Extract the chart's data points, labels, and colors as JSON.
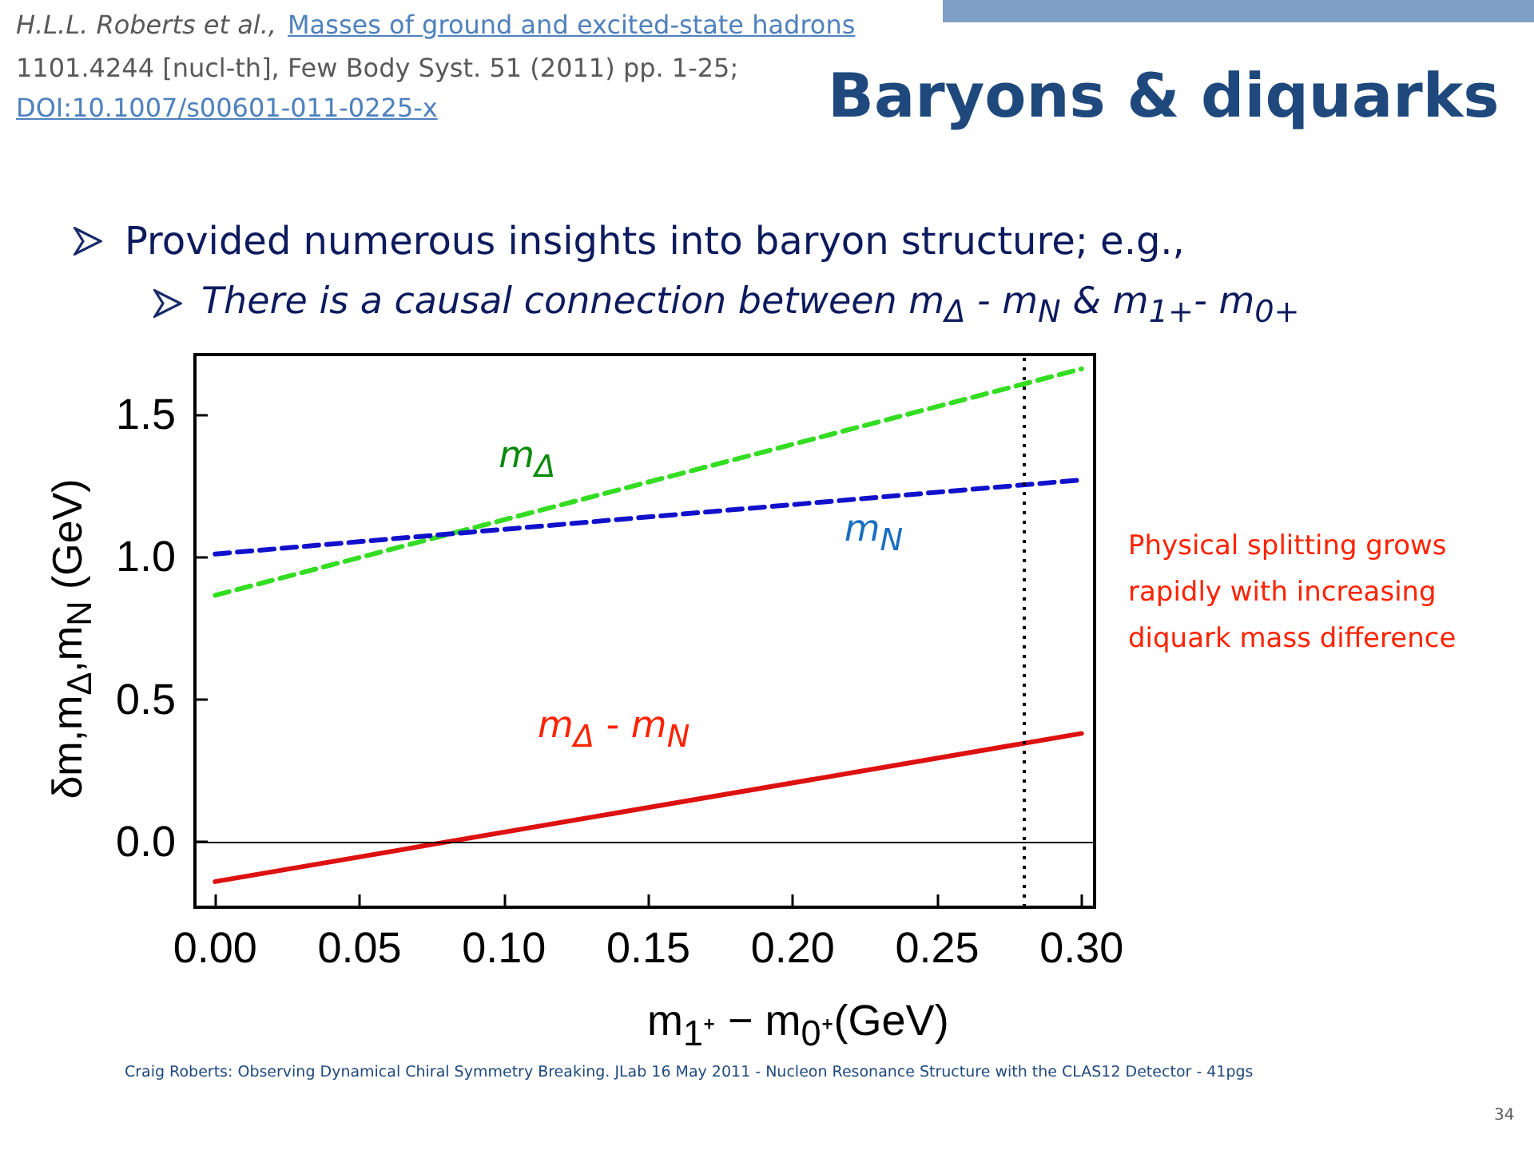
{
  "chart_data": {
    "type": "line",
    "title": "Baryons & diquarks",
    "xlabel": "m$_{1⁺}$ − m$_{0⁺}$(GeV)",
    "ylabel": "δm,m$_{Δ}$,m$_{N}$ (GeV)",
    "x": [
      0,
      0.3
    ],
    "series": [
      {
        "name": "m$_{Δ}$",
        "color": "#33dd22",
        "values": [
          0.865,
          1.66
        ],
        "line_style": "dashed"
      },
      {
        "name": "m$_{N}$",
        "color": "#1111cc",
        "values": [
          1.01,
          1.27
        ],
        "line_style": "dashed"
      },
      {
        "name": "m$_{Δ}$ - m$_{N}$",
        "color": "#dd1111",
        "values": [
          -0.14,
          0.38
        ],
        "line_style": "solid"
      }
    ],
    "xlim": [
      -0.007,
      0.3045
    ],
    "ylim": [
      -0.23,
      1.71
    ],
    "xticks": [
      {
        "value": 0,
        "label": "0.00"
      },
      {
        "value": 0.05,
        "label": "0.05"
      },
      {
        "value": 0.1,
        "label": "0.10"
      },
      {
        "value": 0.15,
        "label": "0.15"
      },
      {
        "value": 0.2,
        "label": "0.20"
      },
      {
        "value": 0.25,
        "label": "0.25"
      },
      {
        "value": 0.3,
        "label": "0.30"
      }
    ],
    "yticks": [
      {
        "value": 0,
        "label": "0.0"
      },
      {
        "value": 0.5,
        "label": "0.5"
      },
      {
        "value": 1,
        "label": "1.0"
      },
      {
        "value": 1.5,
        "label": "1.5"
      }
    ],
    "ref_lines": [
      {
        "axis": "y",
        "value": 0,
        "color": "#000000",
        "line_style": "solid"
      },
      {
        "axis": "x",
        "value": 0.28,
        "color": "#000000",
        "line_style": "dotted"
      }
    ],
    "grid": false,
    "marker": "none",
    "annotations": [
      "H.L.L. Roberts et al.,",
      "Masses of ground and excited-state hadrons",
      "1101.4244 [nucl-th], Few Body Syst. 51 (2011) pp. 1-25;",
      "DOI:10.1007/s00601-011-0225-x",
      "Provided numerous insights into baryon structure; e.g.,",
      "There is a causal connection between m$_{Δ}$ - m$_{N}$ & m$_{1+}$- m$_{0+}$",
      "Physical splitting grows rapidly with increasing diquark mass difference",
      "Craig Roberts: Observing Dynamical Chiral Symmetry Breaking.  JLab 16 May 2011 - Nucleon Resonance Structure with the CLAS12 Detector - 41pgs",
      "34"
    ]
  }
}
